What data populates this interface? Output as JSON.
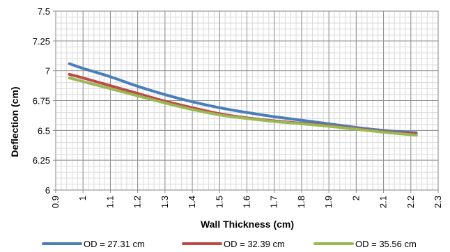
{
  "chart_data": {
    "type": "line",
    "title": "",
    "xlabel": "Wall Thickness (cm)",
    "ylabel": "Deflection (cm)",
    "xlim": [
      0.9,
      2.3
    ],
    "ylim": [
      6,
      7.5
    ],
    "x_major_ticks": [
      "0.9",
      "1",
      "1.1",
      "1.2",
      "1.3",
      "1.4",
      "1.5",
      "1.6",
      "1.7",
      "1.8",
      "1.9",
      "2",
      "2.1",
      "2.2",
      "2.3"
    ],
    "y_major_ticks": [
      "6",
      "6.25",
      "6.5",
      "6.75",
      "7",
      "7.25",
      "7.5"
    ],
    "grid": true,
    "legend_position": "bottom",
    "series": [
      {
        "name": "OD = 27.31 cm",
        "color": "#4a7ebb",
        "x": [
          0.95,
          1.0,
          1.1,
          1.2,
          1.3,
          1.4,
          1.5,
          1.6,
          1.7,
          1.8,
          1.9,
          2.0,
          2.1,
          2.22
        ],
        "y": [
          7.06,
          7.02,
          6.95,
          6.87,
          6.8,
          6.74,
          6.69,
          6.65,
          6.615,
          6.585,
          6.555,
          6.525,
          6.5,
          6.48
        ]
      },
      {
        "name": "OD = 32.39 cm",
        "color": "#be4b48",
        "x": [
          0.95,
          1.0,
          1.1,
          1.2,
          1.3,
          1.4,
          1.5,
          1.6,
          1.7,
          1.8,
          1.9,
          2.0,
          2.1,
          2.22
        ],
        "y": [
          6.97,
          6.94,
          6.875,
          6.81,
          6.745,
          6.69,
          6.64,
          6.605,
          6.58,
          6.56,
          6.54,
          6.515,
          6.49,
          6.47
        ]
      },
      {
        "name": "OD = 35.56 cm",
        "color": "#98b954",
        "x": [
          0.95,
          1.0,
          1.1,
          1.2,
          1.3,
          1.4,
          1.5,
          1.6,
          1.7,
          1.8,
          1.9,
          2.0,
          2.1,
          2.22
        ],
        "y": [
          6.94,
          6.91,
          6.85,
          6.79,
          6.73,
          6.675,
          6.63,
          6.6,
          6.575,
          6.555,
          6.535,
          6.51,
          6.485,
          6.46
        ]
      }
    ]
  }
}
